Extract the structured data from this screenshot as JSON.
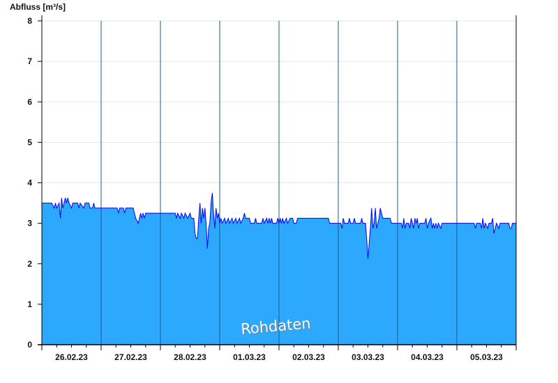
{
  "chart_data": {
    "type": "area",
    "ylabel": "Abfluss [m³/s]",
    "ylim": [
      0,
      8
    ],
    "yticks": [
      0,
      1,
      2,
      3,
      4,
      5,
      6,
      7,
      8
    ],
    "xlim": [
      "2023-02-26T00:00",
      "2023-03-06T00:00"
    ],
    "xtick_labels": [
      "26.02.23",
      "27.02.23",
      "28.02.23",
      "01.03.23",
      "02.03.23",
      "03.03.23",
      "04.03.23",
      "05.03.23"
    ],
    "grid": "horizontal",
    "watermark": "Rohdaten",
    "colors": {
      "fill": "#2ca9ff",
      "line": "#0000ff",
      "day_separator": "#1d5c8a",
      "grid": "#e6e6e6"
    },
    "series": [
      {
        "days": [
          {
            "date": "2023-02-26",
            "values": [
              [
                "00:00",
                3.5
              ],
              [
                "04:00",
                3.5
              ],
              [
                "05:00",
                3.375
              ],
              [
                "05:30",
                3.5
              ],
              [
                "06:00",
                3.375
              ],
              [
                "07:00",
                3.5
              ],
              [
                "07:30",
                3.125
              ],
              [
                "08:00",
                3.625
              ],
              [
                "08:30",
                3.375
              ],
              [
                "09:30",
                3.625
              ],
              [
                "10:00",
                3.5
              ],
              [
                "10:30",
                3.625
              ],
              [
                "11:00",
                3.5
              ],
              [
                "12:00",
                3.375
              ],
              [
                "12:30",
                3.5
              ],
              [
                "14:30",
                3.5
              ],
              [
                "15:00",
                3.375
              ],
              [
                "15:30",
                3.5
              ],
              [
                "17:00",
                3.375
              ],
              [
                "17:30",
                3.5
              ],
              [
                "19:00",
                3.5
              ],
              [
                "19:30",
                3.375
              ],
              [
                "20:30",
                3.375
              ],
              [
                "21:00",
                3.5
              ],
              [
                "21:30",
                3.375
              ]
            ]
          },
          {
            "date": "2023-02-27",
            "values": [
              [
                "00:00",
                3.375
              ],
              [
                "06:30",
                3.375
              ],
              [
                "07:00",
                3.25
              ],
              [
                "07:30",
                3.375
              ],
              [
                "09:00",
                3.375
              ],
              [
                "09:30",
                3.25
              ],
              [
                "10:00",
                3.375
              ],
              [
                "13:00",
                3.375
              ],
              [
                "13:30",
                3.25
              ],
              [
                "14:00",
                3.125
              ],
              [
                "15:00",
                3.0
              ],
              [
                "15:30",
                3.125
              ],
              [
                "16:00",
                3.25
              ],
              [
                "16:30",
                3.125
              ],
              [
                "17:00",
                3.25
              ],
              [
                "17:30",
                3.125
              ],
              [
                "18:00",
                3.25
              ]
            ]
          },
          {
            "date": "2023-02-28",
            "values": [
              [
                "06:00",
                3.25
              ],
              [
                "06:30",
                3.125
              ],
              [
                "07:00",
                3.25
              ],
              [
                "08:00",
                3.125
              ],
              [
                "08:30",
                3.25
              ],
              [
                "09:30",
                3.125
              ],
              [
                "10:00",
                3.25
              ],
              [
                "11:00",
                3.125
              ],
              [
                "12:00",
                3.25
              ],
              [
                "12:30",
                3.125
              ],
              [
                "13:30",
                3.125
              ],
              [
                "14:00",
                2.75
              ],
              [
                "14:30",
                2.625
              ],
              [
                "15:00",
                2.625
              ],
              [
                "15:30",
                3.125
              ],
              [
                "16:00",
                3.5
              ],
              [
                "16:30",
                3.0
              ],
              [
                "17:00",
                3.375
              ],
              [
                "17:30",
                3.125
              ],
              [
                "18:00",
                3.375
              ],
              [
                "18:30",
                3.0
              ],
              [
                "19:00",
                2.375
              ],
              [
                "19:30",
                2.875
              ],
              [
                "20:00",
                3.0
              ],
              [
                "20:30",
                3.5
              ],
              [
                "21:00",
                3.75
              ],
              [
                "21:30",
                3.25
              ],
              [
                "22:00",
                2.875
              ],
              [
                "22:30",
                3.375
              ],
              [
                "23:00",
                3.125
              ],
              [
                "23:30",
                3.25
              ]
            ]
          },
          {
            "date": "2023-03-01",
            "values": [
              [
                "00:00",
                3.0
              ],
              [
                "00:30",
                3.125
              ],
              [
                "01:00",
                3.0
              ],
              [
                "02:00",
                3.125
              ],
              [
                "02:30",
                3.0
              ],
              [
                "03:30",
                3.125
              ],
              [
                "04:00",
                3.0
              ],
              [
                "05:00",
                3.125
              ],
              [
                "05:30",
                3.0
              ],
              [
                "06:30",
                3.125
              ],
              [
                "07:00",
                3.0
              ],
              [
                "08:00",
                3.125
              ],
              [
                "08:30",
                3.0
              ],
              [
                "09:30",
                3.125
              ],
              [
                "10:00",
                3.25
              ],
              [
                "10:30",
                3.125
              ],
              [
                "12:00",
                3.125
              ],
              [
                "12:30",
                3.0
              ],
              [
                "14:00",
                3.0
              ],
              [
                "14:30",
                3.125
              ],
              [
                "15:00",
                3.0
              ],
              [
                "17:00",
                3.0
              ],
              [
                "17:30",
                3.125
              ],
              [
                "18:00",
                3.0
              ],
              [
                "19:00",
                3.125
              ],
              [
                "19:30",
                3.0
              ],
              [
                "20:00",
                3.125
              ],
              [
                "20:30",
                3.0
              ],
              [
                "21:00",
                3.125
              ],
              [
                "21:30",
                3.0
              ],
              [
                "23:00",
                3.0
              ],
              [
                "23:30",
                3.125
              ]
            ]
          },
          {
            "date": "2023-03-02",
            "values": [
              [
                "00:00",
                3.0
              ],
              [
                "00:30",
                3.125
              ],
              [
                "01:00",
                3.0
              ],
              [
                "01:30",
                3.125
              ],
              [
                "02:00",
                3.0
              ],
              [
                "03:00",
                3.125
              ],
              [
                "03:30",
                3.0
              ],
              [
                "04:30",
                3.125
              ],
              [
                "05:30",
                3.125
              ],
              [
                "06:00",
                3.0
              ],
              [
                "07:00",
                3.0
              ],
              [
                "07:30",
                3.125
              ],
              [
                "20:00",
                3.125
              ],
              [
                "20:30",
                3.0
              ]
            ]
          },
          {
            "date": "2023-03-03",
            "values": [
              [
                "01:00",
                3.0
              ],
              [
                "01:30",
                2.875
              ],
              [
                "02:00",
                3.125
              ],
              [
                "02:30",
                3.0
              ],
              [
                "04:00",
                3.0
              ],
              [
                "04:30",
                3.125
              ],
              [
                "05:00",
                3.0
              ],
              [
                "06:00",
                3.0
              ],
              [
                "06:30",
                3.125
              ],
              [
                "07:00",
                3.0
              ],
              [
                "09:00",
                3.0
              ],
              [
                "09:30",
                3.125
              ],
              [
                "10:00",
                3.0
              ],
              [
                "11:00",
                3.0
              ],
              [
                "11:30",
                2.625
              ],
              [
                "12:00",
                2.125
              ],
              [
                "12:30",
                2.5
              ],
              [
                "13:00",
                2.875
              ],
              [
                "13:30",
                3.375
              ],
              [
                "14:00",
                2.875
              ],
              [
                "14:30",
                3.0
              ],
              [
                "15:00",
                3.375
              ],
              [
                "15:30",
                2.875
              ],
              [
                "16:00",
                3.0
              ],
              [
                "16:30",
                3.125
              ],
              [
                "17:00",
                3.375
              ],
              [
                "17:30",
                3.25
              ],
              [
                "18:00",
                3.125
              ],
              [
                "21:00",
                3.125
              ],
              [
                "21:30",
                3.0
              ]
            ]
          },
          {
            "date": "2023-03-04",
            "values": [
              [
                "01:30",
                3.0
              ],
              [
                "02:00",
                2.875
              ],
              [
                "02:30",
                3.125
              ],
              [
                "03:00",
                2.875
              ],
              [
                "03:30",
                3.0
              ],
              [
                "04:30",
                3.0
              ],
              [
                "05:00",
                2.875
              ],
              [
                "05:30",
                3.125
              ],
              [
                "06:00",
                3.0
              ],
              [
                "06:30",
                2.875
              ],
              [
                "07:00",
                3.125
              ],
              [
                "07:30",
                3.0
              ],
              [
                "08:00",
                3.125
              ],
              [
                "08:30",
                2.875
              ],
              [
                "09:00",
                3.0
              ],
              [
                "11:00",
                3.0
              ],
              [
                "11:30",
                3.125
              ],
              [
                "12:00",
                2.875
              ],
              [
                "12:30",
                3.0
              ],
              [
                "13:30",
                3.125
              ],
              [
                "14:00",
                2.875
              ],
              [
                "14:30",
                3.0
              ],
              [
                "15:00",
                2.875
              ],
              [
                "15:30",
                3.0
              ],
              [
                "16:00",
                2.875
              ],
              [
                "16:30",
                3.0
              ],
              [
                "17:30",
                2.875
              ],
              [
                "18:00",
                3.0
              ]
            ]
          },
          {
            "date": "2023-03-05",
            "values": [
              [
                "07:00",
                3.0
              ],
              [
                "07:30",
                2.875
              ],
              [
                "08:00",
                3.0
              ],
              [
                "09:30",
                3.0
              ],
              [
                "10:00",
                2.875
              ],
              [
                "10:30",
                3.125
              ],
              [
                "11:00",
                2.875
              ],
              [
                "11:30",
                3.0
              ],
              [
                "12:30",
                2.875
              ],
              [
                "13:00",
                3.0
              ],
              [
                "14:00",
                3.0
              ],
              [
                "14:30",
                3.125
              ],
              [
                "15:00",
                2.75
              ],
              [
                "15:30",
                2.875
              ],
              [
                "16:00",
                3.0
              ],
              [
                "17:00",
                2.875
              ],
              [
                "17:30",
                3.0
              ],
              [
                "21:00",
                3.0
              ],
              [
                "21:30",
                2.875
              ],
              [
                "22:00",
                2.875
              ],
              [
                "22:30",
                3.0
              ]
            ]
          },
          {
            "date": "2023-03-06",
            "values": [
              [
                "00:00",
                3.0
              ]
            ]
          }
        ]
      }
    ]
  }
}
